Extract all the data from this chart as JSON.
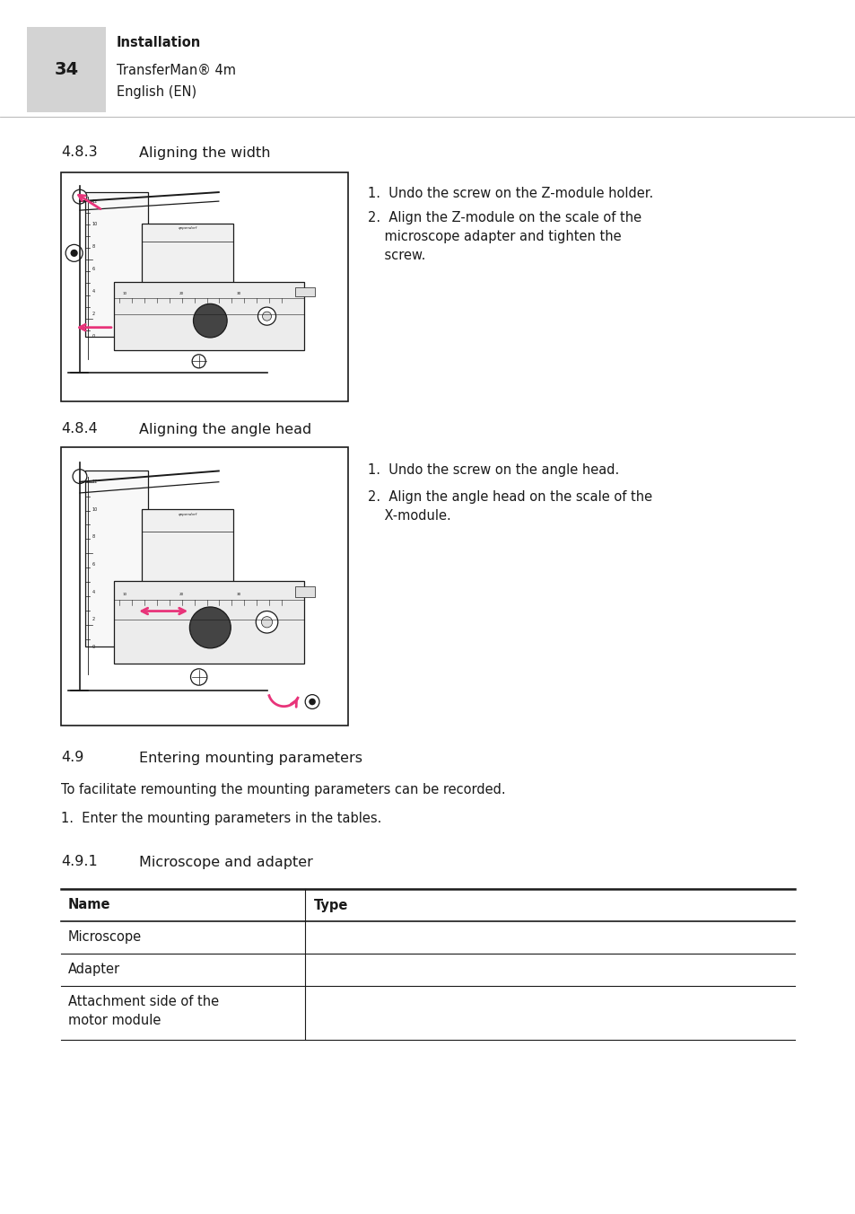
{
  "page_bg": "#ffffff",
  "header_bg": "#d3d3d3",
  "header_number": "34",
  "header_line1": "Installation",
  "header_line2": "TransferMan® 4m",
  "header_line3": "English (EN)",
  "section_483_title": "4.8.3",
  "section_483_subtitle": "Aligning the width",
  "section_483_steps": [
    "1.  Undo the screw on the Z-module holder.",
    "2.  Align the Z-module on the scale of the\n    microscope adapter and tighten the\n    screw."
  ],
  "section_484_title": "4.8.4",
  "section_484_subtitle": "Aligning the angle head",
  "section_484_steps": [
    "1.  Undo the screw on the angle head.",
    "2.  Align the angle head on the scale of the\n    X-module."
  ],
  "section_49_num": "4.9",
  "section_49_subtitle": "Entering mounting parameters",
  "section_49_body": "To facilitate remounting the mounting parameters can be recorded.",
  "section_49_step": "1.  Enter the mounting parameters in the tables.",
  "section_491_num": "4.9.1",
  "section_491_subtitle": "Microscope and adapter",
  "table_headers": [
    "Name",
    "Type"
  ],
  "table_rows": [
    [
      "Microscope",
      ""
    ],
    [
      "Adapter",
      ""
    ],
    [
      "Attachment side of the\nmotor module",
      ""
    ]
  ],
  "body_fontsize": 10.5,
  "section_title_fontsize": 11.5,
  "pink": "#e8347a",
  "dark": "#1a1a1a",
  "gray_line": "#aaaaaa"
}
